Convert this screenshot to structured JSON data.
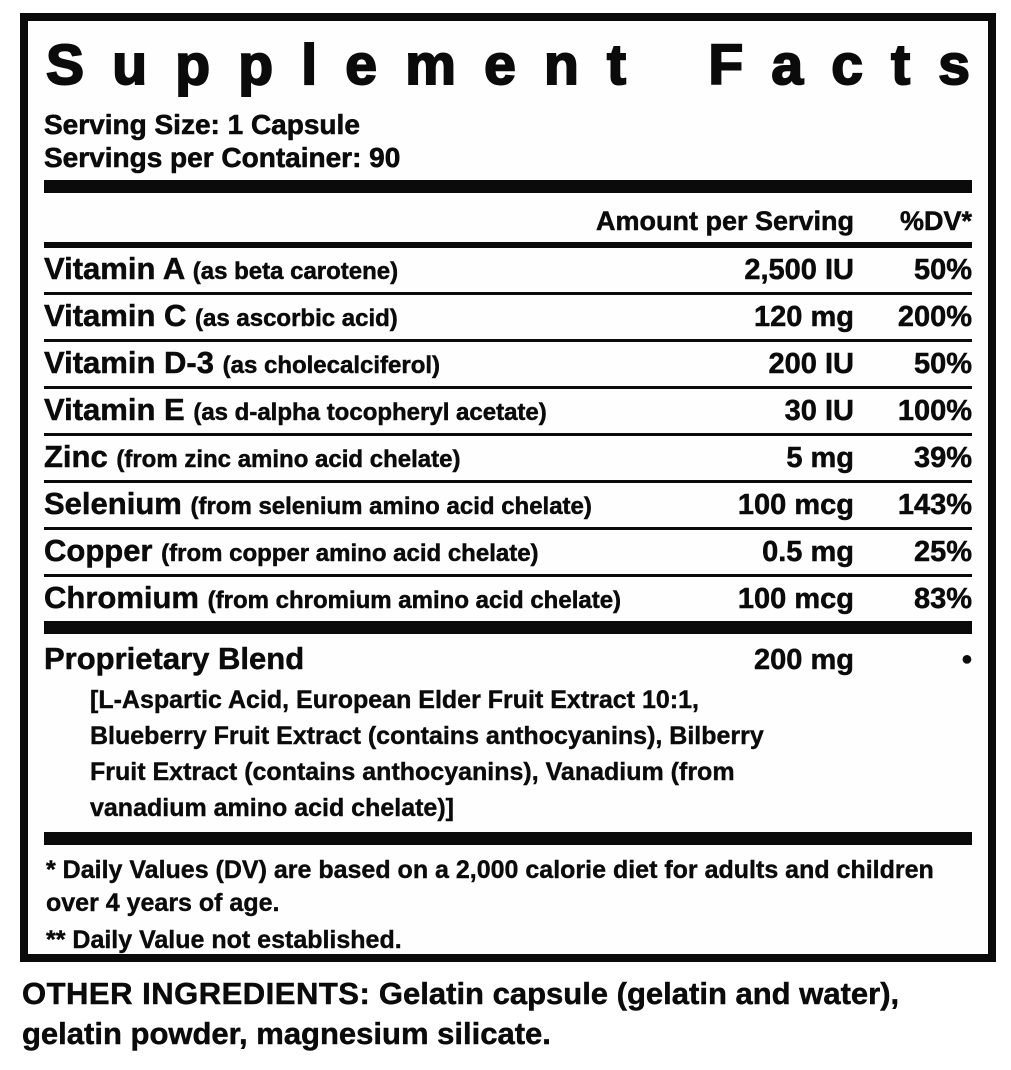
{
  "colors": {
    "ink": "#0b0b0b",
    "background": "#ffffff"
  },
  "panel": {
    "title": "Supplement Facts",
    "serving_size": "Serving Size: 1 Capsule",
    "servings_per_container": "Servings per Container: 90"
  },
  "table": {
    "header": {
      "amount": "Amount per Serving",
      "dv": "%DV*"
    },
    "rows": [
      {
        "name": "Vitamin A",
        "detail": "(as beta carotene)",
        "amount": "2,500 IU",
        "dv": "50%"
      },
      {
        "name": "Vitamin C",
        "detail": "(as ascorbic acid)",
        "amount": "120 mg",
        "dv": "200%"
      },
      {
        "name": "Vitamin D-3",
        "detail": "(as cholecalciferol)",
        "amount": "200 IU",
        "dv": "50%"
      },
      {
        "name": "Vitamin E",
        "detail": "(as d-alpha tocopheryl acetate)",
        "amount": "30 IU",
        "dv": "100%"
      },
      {
        "name": "Zinc",
        "detail": "(from zinc amino acid chelate)",
        "amount": "5 mg",
        "dv": "39%"
      },
      {
        "name": "Selenium",
        "detail": "(from selenium amino acid chelate)",
        "amount": "100 mcg",
        "dv": "143%"
      },
      {
        "name": "Copper",
        "detail": "(from copper amino acid chelate)",
        "amount": "0.5 mg",
        "dv": "25%"
      },
      {
        "name": "Chromium",
        "detail": "(from chromium amino acid chelate)",
        "amount": "100 mcg",
        "dv": "83%"
      }
    ]
  },
  "blend": {
    "name": "Proprietary Blend",
    "amount": "200 mg",
    "dv": "•",
    "lines": [
      "[L-Aspartic Acid, European Elder Fruit Extract 10:1,",
      "Blueberry Fruit Extract (contains anthocyanins), Bilberry",
      "Fruit Extract (contains anthocyanins), Vanadium (from",
      "vanadium amino acid chelate)]"
    ]
  },
  "footnotes": {
    "daily_values": "* Daily Values (DV) are based on a 2,000 calorie diet for adults and children over 4 years of age.",
    "not_established": "** Daily Value not established."
  },
  "other_ingredients": {
    "label": "OTHER INGREDIENTS:",
    "text": " Gelatin capsule (gelatin and water), gelatin powder, magnesium silicate."
  }
}
